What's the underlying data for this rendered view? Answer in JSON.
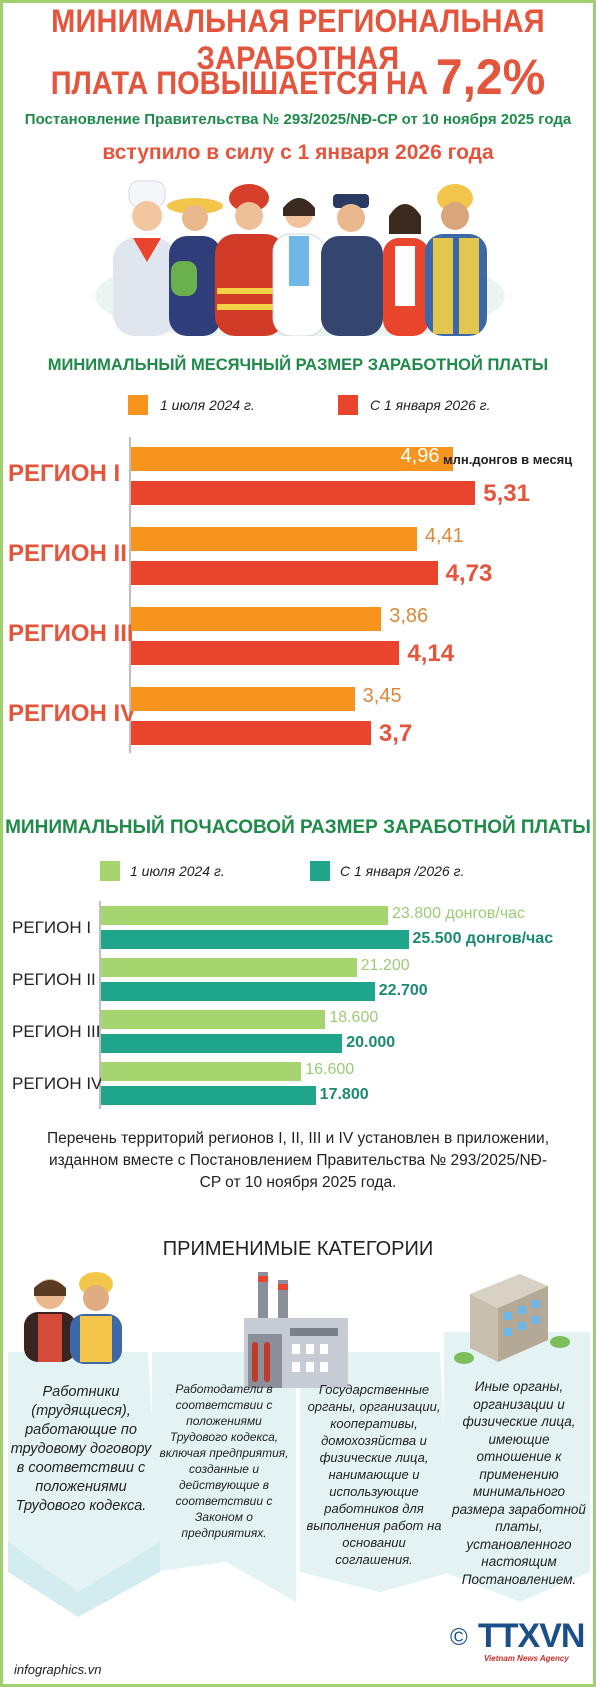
{
  "header": {
    "title_line1": "МИНИМАЛЬНАЯ РЕГИОНАЛЬНАЯ ЗАРАБОТНАЯ",
    "title_line2": "ПЛАТА ПОВЫШАЕТСЯ НА",
    "title_highlight": "7,2%",
    "decree": "Постановление Правительства № 293/2025/NĐ-CP от 10 ноября 2025 года",
    "effective": "вступило в силу с 1 января 2026 года"
  },
  "colors": {
    "orange": "#f7941d",
    "red": "#e8452c",
    "light_green": "#a6d46e",
    "teal": "#1fa68a",
    "title_red": "#e4553e",
    "title_green": "#1f8a4a"
  },
  "monthly": {
    "title": "МИНИМАЛЬНЫЙ МЕСЯЧНЫЙ РАЗМЕР ЗАРАБОТНОЙ ПЛАТЫ",
    "unit_note": "млн.донгов в месяц"
  },
  "hourly": {
    "title": "МИНИМАЛЬНЫЙ ПОЧАСОВОЙ РАЗМЕР ЗАРАБОТНОЙ ПЛАТЫ"
  },
  "chart_data": [
    {
      "type": "bar",
      "title": "МИНИМАЛЬНЫЙ МЕСЯЧНЫЙ РАЗМЕР ЗАРАБОТНОЙ ПЛАТЫ",
      "categories": [
        "РЕГИОН I",
        "РЕГИОН II",
        "РЕГИОН III",
        "РЕГИОН IV"
      ],
      "series": [
        {
          "name": "1 июля 2024 г.",
          "values": [
            4.96,
            4.41,
            3.86,
            3.45
          ],
          "labels": [
            "4,96",
            "4,41",
            "3,86",
            "3,45"
          ],
          "color": "#f7941d"
        },
        {
          "name": "С 1 января 2026 г.",
          "values": [
            5.31,
            4.73,
            4.14,
            3.7
          ],
          "labels": [
            "5,31",
            "4,73",
            "4,14",
            "3,7"
          ],
          "color": "#e8452c"
        }
      ],
      "orientation": "horizontal",
      "unit": "млн.донгов в месяц",
      "xlim": [
        0,
        5.8
      ],
      "legend": "top"
    },
    {
      "type": "bar",
      "title": "МИНИМАЛЬНЫЙ ПОЧАСОВОЙ РАЗМЕР ЗАРАБОТНОЙ ПЛАТЫ",
      "categories": [
        "РЕГИОН I",
        "РЕГИОН II",
        "РЕГИОН III",
        "РЕГИОН IV"
      ],
      "series": [
        {
          "name": "1 июля 2024 г.",
          "values": [
            23800,
            21200,
            18600,
            16600
          ],
          "labels": [
            "23.800 донгов/час",
            "21.200",
            "18.600",
            "16.600"
          ],
          "color": "#a6d46e"
        },
        {
          "name": "С 1 января /2026 г.",
          "values": [
            25500,
            22700,
            20000,
            17800
          ],
          "labels": [
            "25.500 донгов/час",
            "22.700",
            "20.000",
            "17.800"
          ],
          "color": "#1fa68a"
        }
      ],
      "orientation": "horizontal",
      "xlim": [
        0,
        33000
      ],
      "legend": "top"
    }
  ],
  "note": "Перечень территорий регионов I, II, III и IV установлен в приложении, изданном вместе с Постановлением Правительства № 293/2025/NĐ-CP от 10 ноября 2025 года.",
  "categories": {
    "title": "ПРИМЕНИМЫЕ КАТЕГОРИИ",
    "items": [
      "Работники (трудящиеся), работающие по трудовому договору в соответствии с положениями Трудового кодекса.",
      "Работодатели в соответствии с положениями Трудового кодекса, включая предприятия, созданные и действующие в соответствии с Законом о предприятиях.",
      "Государственные органы, организации, кооперативы, домохозяйства и физические лица, нанимающие и использующие работников для выполнения работ на основании соглашения.",
      "Иные органы, организации и физические лица, имеющие отношение к применению минимального размера заработной платы, установленного настоящим Постановлением."
    ]
  },
  "footer": {
    "source": "infographics.vn",
    "copyright": "©",
    "logo": "TTXVN",
    "logo_sub": "Vietnam News Agency"
  }
}
